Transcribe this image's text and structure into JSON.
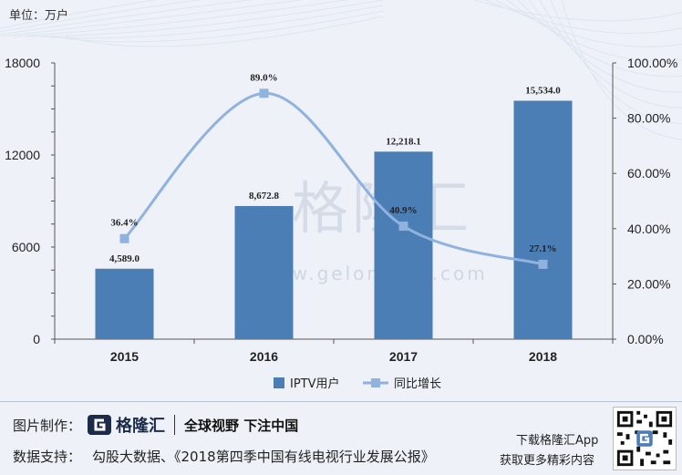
{
  "unit_label": "单位：万户",
  "watermark": {
    "brand_cn": "格隆汇",
    "brand_url": "www.gelonghui.com"
  },
  "footer": {
    "made_by_label": "图片制作：",
    "logo_text": "格隆汇",
    "slogan": "全球视野 下注中国",
    "source_label": "数据支持：",
    "source_text": "勾股大数据、《2018第四季中国有线电视行业发展公报》",
    "app_line1": "下载格隆汇App",
    "app_line2": "获取更多精彩内容"
  },
  "colors": {
    "bar": "#4a7eb5",
    "line": "#8fb2de",
    "accent": "#1d2b4a"
  },
  "chart_data": {
    "type": "bar",
    "categories": [
      "2015",
      "2016",
      "2017",
      "2018"
    ],
    "series": [
      {
        "name": "IPTV用户",
        "type": "bar",
        "axis": "left",
        "values": [
          4589.0,
          8672.8,
          12218.1,
          15534.0
        ],
        "labels": [
          "4,589.0",
          "8,672.8",
          "12,218.1",
          "15,534.0"
        ]
      },
      {
        "name": "同比增长",
        "type": "line",
        "axis": "right",
        "values": [
          36.4,
          89.0,
          40.9,
          27.1
        ],
        "labels": [
          "36.4%",
          "89.0%",
          "40.9%",
          "27.1%"
        ]
      }
    ],
    "y_left": {
      "ticks": [
        "0",
        "6000",
        "12000",
        "18000"
      ],
      "tick_values": [
        0,
        6000,
        12000,
        18000
      ],
      "range": [
        0,
        18000
      ]
    },
    "y_right": {
      "ticks": [
        "0.00%",
        "20.00%",
        "40.00%",
        "60.00%",
        "80.00%",
        "100.00%"
      ],
      "tick_values": [
        0,
        20,
        40,
        60,
        80,
        100
      ],
      "range": [
        0,
        100
      ]
    },
    "legend": {
      "position": "bottom",
      "items": [
        "IPTV用户",
        "同比增长"
      ]
    },
    "grid": false
  }
}
